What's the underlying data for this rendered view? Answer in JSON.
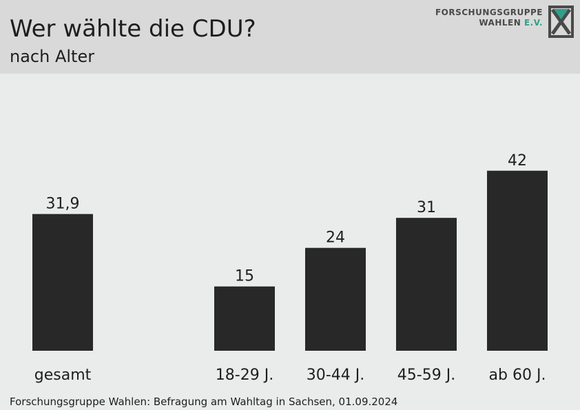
{
  "header": {
    "title": "Wer wählte die CDU?",
    "subtitle": "nach Alter",
    "logo_line1": "FORSCHUNGSGRUPPE",
    "logo_line2": "WAHLEN",
    "logo_line2_accent": "E.V."
  },
  "footer": {
    "source": "Forschungsgruppe Wahlen: Befragung am Wahltag in Sachsen, 01.09.2024"
  },
  "colors": {
    "bar": "#282828",
    "header_bg": "#d9d9d9",
    "plot_bg": "#e9ecea",
    "logo_accent": "#2f9e8a"
  },
  "chart_data": {
    "type": "bar",
    "categories": [
      "gesamt",
      "18-29 J.",
      "30-44 J.",
      "45-59 J.",
      "ab 60 J."
    ],
    "values": [
      31.9,
      15,
      24,
      31,
      42
    ],
    "value_labels": [
      "31,9",
      "15",
      "24",
      "31",
      "42"
    ],
    "title": "Wer wählte die CDU?",
    "subtitle": "nach Alter",
    "xlabel": "",
    "ylabel": "",
    "ylim": [
      0,
      42
    ],
    "grid": false,
    "legend": "none"
  }
}
